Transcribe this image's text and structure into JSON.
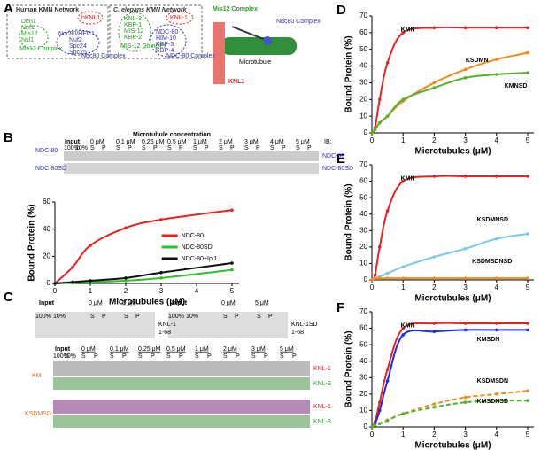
{
  "panel_labels": [
    "A",
    "B",
    "C",
    "D",
    "E",
    "F"
  ],
  "panel_a": {
    "human_title": "Human KMN Network",
    "human_mis12": [
      "Den1",
      "Nnf1",
      "Mis12",
      "Nsl1",
      "Mis12 Complex"
    ],
    "human_knl": "hKNL1",
    "human_ndc80": [
      "Ndc80/HEC1",
      "Nuf2",
      "Spc24",
      "Spc25",
      "Ndc80 Complex"
    ],
    "ce_title": "C. elegans KMN Network",
    "ce_mis12": [
      "KNL-3",
      "KBP-1",
      "MIS-12",
      "KBP-2",
      "MIS-12 Complex"
    ],
    "ce_knl": "KNL-1",
    "ce_ndc80": [
      "NDC-80",
      "HIM-10",
      "KBP-3",
      "KBP-4",
      "NDC-80 Complex"
    ],
    "diagram": {
      "mis12": "Mis12 Complex",
      "ndc80": "Ndc80 Complex",
      "mt": "Microtubule",
      "knl": "KNL1"
    }
  },
  "panel_b_gel": {
    "title": "Microtubule concentration",
    "input": "Input",
    "pct": [
      "100%",
      "10%"
    ],
    "lanes": [
      "0 μM",
      "0.1 μM",
      "0.25 μM",
      "0.5 μM",
      "1 μM",
      "2 μM",
      "3 μM",
      "4 μM",
      "5 μM"
    ],
    "sp": [
      "S",
      "P"
    ],
    "ib": "IB:",
    "rows": [
      "NDC-80",
      "NDC-80SD"
    ]
  },
  "panel_c": {
    "input": "Input",
    "pct": [
      "100%",
      "10%"
    ],
    "lanes": [
      "0 μM",
      "5 μM"
    ],
    "sp": [
      "S",
      "P"
    ],
    "gel_left": [
      "KNL-1",
      "1-68"
    ],
    "gel_right": [
      "KNL-1SD",
      "1-68"
    ],
    "bottom_lanes": [
      "0 μM",
      "0.1 μM",
      "0.25 μM",
      "0.5 μM",
      "1 μM",
      "2 μM",
      "3 μM",
      "5 μM"
    ],
    "rows": [
      "KNL-1",
      "KNL-3"
    ],
    "constructs": [
      "KM",
      "KSDMSD"
    ]
  },
  "chart_data": [
    {
      "type": "line",
      "xlabel": "Microtubules (μM)",
      "ylabel": "Bound Protein (%)",
      "x": [
        0,
        0.5,
        1,
        2,
        3,
        5
      ],
      "xlim": [
        0,
        5.2
      ],
      "xticks": [
        0,
        1,
        2,
        3,
        4,
        5
      ],
      "ylim": [
        0,
        60
      ],
      "yticks": [
        0,
        20,
        40,
        60
      ],
      "legend": "right",
      "series": [
        {
          "name": "NDC-80",
          "color": "#e8231f",
          "values": [
            0,
            12,
            28,
            41,
            47,
            54
          ]
        },
        {
          "name": "NDC-80SD",
          "color": "#2fbf2f",
          "values": [
            0,
            0.5,
            1,
            2,
            4,
            10
          ]
        },
        {
          "name": "NDC-80+Ipl1",
          "color": "#111111",
          "values": [
            0,
            1,
            2,
            4,
            8,
            15
          ]
        }
      ]
    },
    {
      "type": "line",
      "xlabel": "Microtubules (μM)",
      "ylabel": "Bound Protein (%)",
      "x": [
        0,
        0.1,
        0.25,
        0.5,
        1,
        2,
        3,
        4,
        5
      ],
      "xlim": [
        0,
        5.2
      ],
      "xticks": [
        0,
        1,
        2,
        3,
        4,
        5
      ],
      "ylim": [
        0,
        70
      ],
      "yticks": [
        0,
        10,
        20,
        30,
        40,
        50,
        60,
        70
      ],
      "series": [
        {
          "name": "KMN",
          "color": "#e8231f",
          "values": [
            0,
            3,
            20,
            42,
            60,
            63,
            63,
            63,
            63
          ]
        },
        {
          "name": "KSDMN",
          "color": "#f28c1e",
          "values": [
            0,
            2,
            6,
            10,
            19,
            30,
            38,
            44,
            48
          ]
        },
        {
          "name": "KMNSD",
          "color": "#55b030",
          "values": [
            0,
            2,
            6,
            10,
            20,
            27,
            33,
            35,
            36
          ]
        }
      ]
    },
    {
      "type": "line",
      "xlabel": "Microtubules (μM)",
      "ylabel": "Bound Protein (%)",
      "x": [
        0,
        0.1,
        0.25,
        0.5,
        1,
        2,
        3,
        4,
        5
      ],
      "xlim": [
        0,
        5.2
      ],
      "xticks": [
        0,
        1,
        2,
        3,
        4,
        5
      ],
      "ylim": [
        0,
        70
      ],
      "yticks": [
        0,
        10,
        20,
        30,
        40,
        50,
        60,
        70
      ],
      "series": [
        {
          "name": "KMN",
          "color": "#e8231f",
          "values": [
            0,
            3,
            20,
            42,
            60,
            63,
            63,
            63,
            63
          ]
        },
        {
          "name": "KSDMNSD",
          "color": "#7cc8ec",
          "values": [
            0,
            1,
            2,
            4,
            8,
            14,
            19,
            25,
            28
          ]
        },
        {
          "name": "KSDMSDNSD",
          "color": "#f28c1e",
          "values": [
            0,
            1,
            1,
            1,
            1,
            1,
            1,
            1,
            1
          ]
        }
      ]
    },
    {
      "type": "line",
      "xlabel": "Microtubules (μM)",
      "ylabel": "Bound Protein (%)",
      "x": [
        0,
        0.1,
        0.25,
        0.5,
        1,
        2,
        3,
        4,
        5
      ],
      "xlim": [
        0,
        5.2
      ],
      "xticks": [
        0,
        1,
        2,
        3,
        4,
        5
      ],
      "ylim": [
        0,
        70
      ],
      "yticks": [
        0,
        10,
        20,
        30,
        40,
        50,
        60,
        70
      ],
      "series": [
        {
          "name": "KMN",
          "color": "#e8231f",
          "values": [
            0,
            3,
            15,
            35,
            60,
            63,
            63,
            63,
            63
          ]
        },
        {
          "name": "KMSDN",
          "color": "#1d2ee0",
          "values": [
            0,
            2,
            10,
            28,
            56,
            58,
            59,
            59,
            59
          ]
        },
        {
          "name": "KSDMSDN",
          "color": "#f28c1e",
          "dashed": true,
          "values": [
            0,
            1,
            2,
            4,
            8,
            14,
            18,
            20,
            22
          ]
        },
        {
          "name": "KMSDNSD",
          "color": "#55b030",
          "dashed": true,
          "values": [
            0,
            1,
            2,
            4,
            8,
            12,
            15,
            16,
            16
          ]
        }
      ]
    }
  ]
}
